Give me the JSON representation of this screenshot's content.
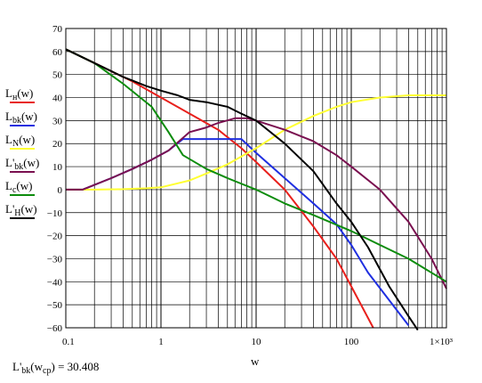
{
  "chart_data": {
    "type": "line",
    "x_scale": "log",
    "xlim": [
      0.1,
      1000
    ],
    "ylim": [
      -60,
      70
    ],
    "xlabel": "w",
    "grid": true,
    "x_ticks": [
      "0.1",
      "1",
      "10",
      "100",
      "1×10³"
    ],
    "y_ticks": [
      "70",
      "60",
      "50",
      "40",
      "30",
      "20",
      "10",
      "0",
      "−10",
      "−20",
      "−30",
      "−40",
      "−50",
      "−60"
    ],
    "series": [
      {
        "name": "L_н(w)",
        "color": "#e8201c",
        "x": [
          0.1,
          0.2,
          0.5,
          1,
          2,
          4,
          7,
          10,
          20,
          40,
          70,
          100,
          170
        ],
        "y": [
          61,
          55,
          47,
          40,
          33,
          26,
          18,
          12,
          0,
          -16,
          -30,
          -42,
          -60
        ]
      },
      {
        "name": "L_bk(w)",
        "color": "#1f2fe0",
        "x": [
          0.1,
          0.15,
          0.3,
          0.5,
          0.8,
          1.2,
          1.7,
          3,
          5,
          7,
          10,
          20,
          40,
          70,
          100,
          150,
          250,
          400
        ],
        "y": [
          0,
          0,
          5,
          9,
          13,
          17,
          22,
          22,
          22,
          22,
          16,
          5,
          -6,
          -15,
          -24,
          -36,
          -48,
          -59
        ]
      },
      {
        "name": "L_N(w)",
        "color": "#ffff33",
        "x": [
          0.1,
          0.2,
          0.4,
          0.7,
          1,
          2,
          3,
          5,
          10,
          20,
          40,
          70,
          100,
          200,
          400,
          1000
        ],
        "y": [
          0,
          0,
          0.2,
          0.6,
          1,
          4,
          7,
          11,
          18,
          26,
          32,
          36,
          38,
          40,
          41,
          41
        ]
      },
      {
        "name": "L'_bk(w)",
        "color": "#7a1050",
        "x": [
          0.1,
          0.15,
          0.3,
          0.5,
          0.8,
          1.2,
          2,
          3,
          4,
          6,
          8,
          10,
          20,
          40,
          70,
          100,
          200,
          400,
          700,
          1000
        ],
        "y": [
          0,
          0,
          5,
          9,
          13,
          17,
          25,
          27,
          29,
          31,
          31,
          30,
          26,
          21,
          15,
          10,
          0,
          -14,
          -30,
          -43
        ]
      },
      {
        "name": "L_c(w)",
        "color": "#0c8c0c",
        "x": [
          0.1,
          0.2,
          0.4,
          0.8,
          1.2,
          1.7,
          3,
          5,
          10,
          20,
          40,
          100,
          200,
          400,
          1000
        ],
        "y": [
          61,
          55,
          46,
          36,
          25,
          15,
          9,
          5,
          0,
          -6,
          -11,
          -18,
          -24,
          -30,
          -40
        ]
      },
      {
        "name": "L'_H(w)",
        "color": "#000000",
        "x": [
          0.1,
          0.2,
          0.4,
          0.7,
          1,
          1.5,
          2,
          3,
          5,
          7,
          10,
          20,
          40,
          70,
          100,
          150,
          250,
          400,
          500
        ],
        "y": [
          61,
          55,
          49,
          45,
          43,
          41,
          39,
          38,
          36,
          33,
          30,
          20,
          8,
          -6,
          -14,
          -25,
          -42,
          -55,
          -61
        ]
      }
    ]
  },
  "legend": [
    {
      "base": "L",
      "sub": "н",
      "prime": "",
      "arg": "(w)"
    },
    {
      "base": "L",
      "sub": "bk",
      "prime": "",
      "arg": "(w)"
    },
    {
      "base": "L",
      "sub": "N",
      "prime": "",
      "arg": "(w)"
    },
    {
      "base": "L",
      "sub": "bk",
      "prime": "'",
      "arg": "(w)"
    },
    {
      "base": "L",
      "sub": "c",
      "prime": "",
      "arg": "(w)"
    },
    {
      "base": "L",
      "sub": "H",
      "prime": "'",
      "arg": "(w)"
    }
  ],
  "formula": {
    "lhs": "L'",
    "lhs_sub": "bk",
    "arg_open": "(w",
    "arg_sub": "cp",
    "arg_close": ")",
    "equals": " = ",
    "value": "30.408"
  }
}
